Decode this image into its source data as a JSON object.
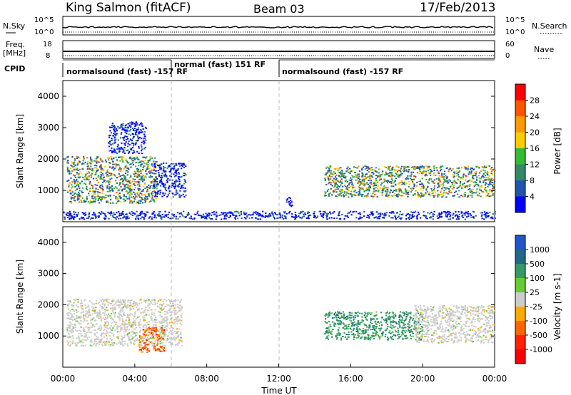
{
  "header": {
    "station": "King Salmon (fitACF)",
    "beam": "Beam 03",
    "date": "17/Feb/2013"
  },
  "strip_panels": {
    "nsky": {
      "left_label": "N.Sky",
      "right_label": "N.Search",
      "left_ticks": [
        "10^5",
        "10^0"
      ],
      "right_ticks": [
        "10^5",
        "10^0"
      ]
    },
    "freq": {
      "left_label_lines": [
        "Freq.",
        "[MHz]"
      ],
      "right_label": "Nave",
      "left_ticks": [
        "18",
        "8"
      ],
      "right_ticks": [
        "60",
        "0"
      ]
    },
    "cpid": {
      "label": "CPID",
      "segments": [
        {
          "label": "normalsound (fast) -157 RF",
          "start_hour": 0,
          "end_hour": 6
        },
        {
          "label": "normal (fast) 151 RF",
          "start_hour": 6,
          "end_hour": 12
        },
        {
          "label": "normalsound (fast) -157 RF",
          "start_hour": 12,
          "end_hour": 24
        }
      ]
    }
  },
  "chart_data": [
    {
      "type": "heatmap",
      "name": "power",
      "xlabel": "Time UT",
      "ylabel": "Slant Range [km]",
      "xlim": [
        0,
        24
      ],
      "ylim": [
        0,
        4500
      ],
      "y_ticks": [
        1000,
        2000,
        3000,
        4000
      ],
      "colorbar": {
        "label": "Power [dB]",
        "tick_labels": [
          "28",
          "24",
          "20",
          "16",
          "12",
          "8",
          "4"
        ],
        "colors": [
          "#ff0000",
          "#ff5500",
          "#ff9900",
          "#ffcc00",
          "#33bb33",
          "#338866",
          "#2255aa",
          "#0000ff"
        ]
      },
      "echo_regions": [
        {
          "t_start": 0.2,
          "t_end": 5.2,
          "r_min": 600,
          "r_max": 2100,
          "level": "moderate-high"
        },
        {
          "t_start": 2.5,
          "t_end": 4.6,
          "r_min": 2200,
          "r_max": 3200,
          "level": "low"
        },
        {
          "t_start": 5.0,
          "t_end": 6.8,
          "r_min": 800,
          "r_max": 1900,
          "level": "low"
        },
        {
          "t_start": 12.4,
          "t_end": 12.8,
          "r_min": 500,
          "r_max": 800,
          "level": "low"
        },
        {
          "t_start": 14.5,
          "t_end": 24.0,
          "r_min": 800,
          "r_max": 1800,
          "level": "moderate-high"
        },
        {
          "t_start": 0.0,
          "t_end": 24.0,
          "r_min": 100,
          "r_max": 350,
          "level": "low"
        }
      ]
    },
    {
      "type": "heatmap",
      "name": "velocity",
      "xlabel": "Time UT",
      "ylabel": "Slant Range [km]",
      "xlim": [
        0,
        24
      ],
      "ylim": [
        0,
        4500
      ],
      "y_ticks": [
        1000,
        2000,
        3000,
        4000
      ],
      "colorbar": {
        "label": "Velocity [m s-1]",
        "tick_labels": [
          "1000",
          "500",
          "100",
          "25",
          "-25",
          "-100",
          "-500",
          "-1000"
        ],
        "colors": [
          "#2255cc",
          "#226688",
          "#339966",
          "#66cc33",
          "#cccccc",
          "#ffaa00",
          "#ff6600",
          "#ff2200",
          "#ff0000"
        ]
      },
      "echo_regions": [
        {
          "t_start": 0.2,
          "t_end": 6.6,
          "r_min": 700,
          "r_max": 2200,
          "level": "near-zero"
        },
        {
          "t_start": 4.2,
          "t_end": 5.6,
          "r_min": 500,
          "r_max": 1300,
          "level": "negative"
        },
        {
          "t_start": 14.5,
          "t_end": 20.0,
          "r_min": 900,
          "r_max": 1800,
          "level": "positive"
        },
        {
          "t_start": 19.5,
          "t_end": 24.0,
          "r_min": 800,
          "r_max": 2000,
          "level": "near-zero"
        }
      ]
    }
  ],
  "x_tick_labels": [
    "00:00",
    "04:00",
    "08:00",
    "12:00",
    "16:00",
    "20:00",
    "00:00"
  ],
  "x_axis_title": "Time UT"
}
